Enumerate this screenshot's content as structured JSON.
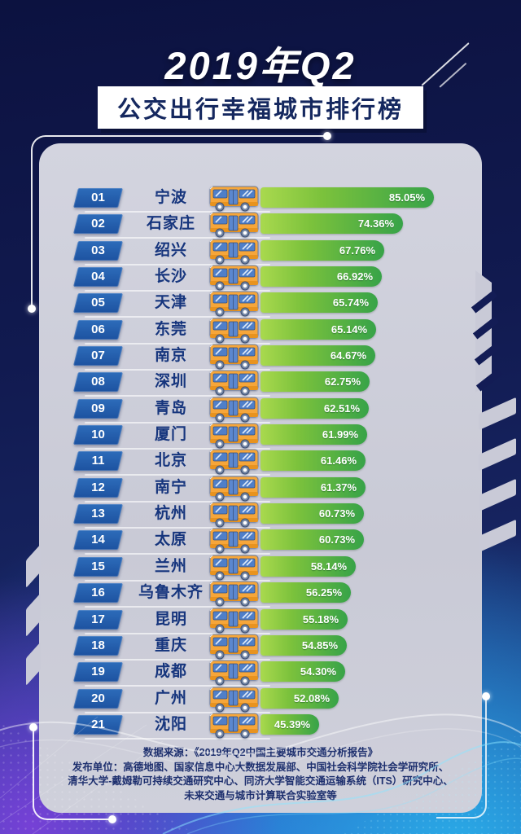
{
  "header": {
    "title": "2019年Q2",
    "subtitle": "公交出行幸福城市排行榜"
  },
  "ranking": {
    "rows": [
      {
        "rank": "01",
        "city": "宁波",
        "value": "85.05%",
        "pct": 85.05
      },
      {
        "rank": "02",
        "city": "石家庄",
        "value": "74.36%",
        "pct": 74.36
      },
      {
        "rank": "03",
        "city": "绍兴",
        "value": "67.76%",
        "pct": 67.76
      },
      {
        "rank": "04",
        "city": "长沙",
        "value": "66.92%",
        "pct": 66.92
      },
      {
        "rank": "05",
        "city": "天津",
        "value": "65.74%",
        "pct": 65.74
      },
      {
        "rank": "06",
        "city": "东莞",
        "value": "65.14%",
        "pct": 65.14
      },
      {
        "rank": "07",
        "city": "南京",
        "value": "64.67%",
        "pct": 64.67
      },
      {
        "rank": "08",
        "city": "深圳",
        "value": "62.75%",
        "pct": 62.75
      },
      {
        "rank": "09",
        "city": "青岛",
        "value": "62.51%",
        "pct": 62.51
      },
      {
        "rank": "10",
        "city": "厦门",
        "value": "61.99%",
        "pct": 61.99
      },
      {
        "rank": "11",
        "city": "北京",
        "value": "61.46%",
        "pct": 61.46
      },
      {
        "rank": "12",
        "city": "南宁",
        "value": "61.37%",
        "pct": 61.37
      },
      {
        "rank": "13",
        "city": "杭州",
        "value": "60.73%",
        "pct": 60.73
      },
      {
        "rank": "14",
        "city": "太原",
        "value": "60.73%",
        "pct": 60.73
      },
      {
        "rank": "15",
        "city": "兰州",
        "value": "58.14%",
        "pct": 58.14
      },
      {
        "rank": "16",
        "city": "乌鲁木齐",
        "value": "56.25%",
        "pct": 56.25
      },
      {
        "rank": "17",
        "city": "昆明",
        "value": "55.18%",
        "pct": 55.18
      },
      {
        "rank": "18",
        "city": "重庆",
        "value": "54.85%",
        "pct": 54.85
      },
      {
        "rank": "19",
        "city": "成都",
        "value": "54.30%",
        "pct": 54.3
      },
      {
        "rank": "20",
        "city": "广州",
        "value": "52.08%",
        "pct": 52.08
      },
      {
        "rank": "21",
        "city": "沈阳",
        "value": "45.39%",
        "pct": 45.39
      }
    ]
  },
  "footer": {
    "lines": [
      "数据来源：《2019年Q2中国主要城市交通分析报告》",
      "发布单位：高德地图、国家信息中心大数据发展部、中国社会科学院社会学研究所、",
      "清华大学-戴姆勒可持续交通研究中心、同济大学智能交通运输系统（ITS）研究中心、",
      "未来交通与城市计算联合实验室等"
    ]
  },
  "icons": {
    "bus": "bus-icon"
  },
  "colors": {
    "background_top": "#0c1240",
    "background_bottom_blue": "#2ab2eb",
    "background_bottom_purple": "#7a40d8",
    "panel": "#c9cad6",
    "badge_blue": "#1d52a0",
    "bar_green_light": "#a9d94e",
    "bar_green_dark": "#37a348",
    "city_text": "#16357d",
    "footer_text": "#1d2f6e",
    "title_text": "#ffffff",
    "subtitle_text": "#15285f"
  },
  "chart_data": {
    "type": "bar",
    "orientation": "horizontal",
    "title": "2019年Q2 公交出行幸福城市排行榜",
    "categories": [
      "宁波",
      "石家庄",
      "绍兴",
      "长沙",
      "天津",
      "东莞",
      "南京",
      "深圳",
      "青岛",
      "厦门",
      "北京",
      "南宁",
      "杭州",
      "太原",
      "兰州",
      "乌鲁木齐",
      "昆明",
      "重庆",
      "成都",
      "广州",
      "沈阳"
    ],
    "values": [
      85.05,
      74.36,
      67.76,
      66.92,
      65.74,
      65.14,
      64.67,
      62.75,
      62.51,
      61.99,
      61.46,
      61.37,
      60.73,
      60.73,
      58.14,
      56.25,
      55.18,
      54.85,
      54.3,
      52.08,
      45.39
    ],
    "unit": "%",
    "xlim": [
      0,
      100
    ],
    "legend": false,
    "grid": false,
    "source_note": "数据来源：《2019年Q2中国主要城市交通分析报告》"
  }
}
